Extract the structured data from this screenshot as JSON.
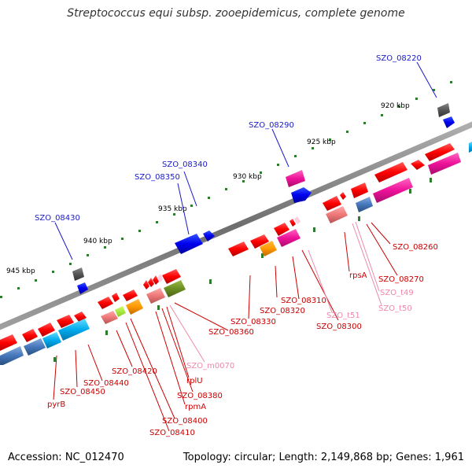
{
  "title": "Streptococcus equi subsp. zooepidemicus, complete genome",
  "accession": "Accession: NC_012470",
  "summary": "Topology: circular; Length: 2,149,868 bp; Genes: 1,961",
  "scale_labels": [
    "920 kbp",
    "925 kbp",
    "930 kbp",
    "935 kbp",
    "940 kbp",
    "945 kbp"
  ],
  "colors": {
    "backbone": "#7f7f7f",
    "outer_gene_label": "#1a1acc",
    "inner_gene_label": "#cc0000",
    "rna_label": "#ee88aa",
    "tick": "#2e7d2e"
  },
  "outer_labels": [
    "SZO_08220",
    "SZO_08290",
    "SZO_08340",
    "SZO_08350",
    "SZO_08430"
  ],
  "inner_labels": [
    "SZO_08260",
    "SZO_08270",
    "rpsA",
    "SZO_08300",
    "SZO_08310",
    "SZO_08320",
    "SZO_08330",
    "SZO_08360",
    "rplU",
    "SZO_08380",
    "rpmA",
    "SZO_08400",
    "SZO_08410",
    "SZO_08420",
    "SZO_08440",
    "SZO_08450",
    "pyrB"
  ],
  "rna_labels": [
    "SZO_t49",
    "SZO_t50",
    "SZO_t51",
    "SZO_m0070"
  ]
}
